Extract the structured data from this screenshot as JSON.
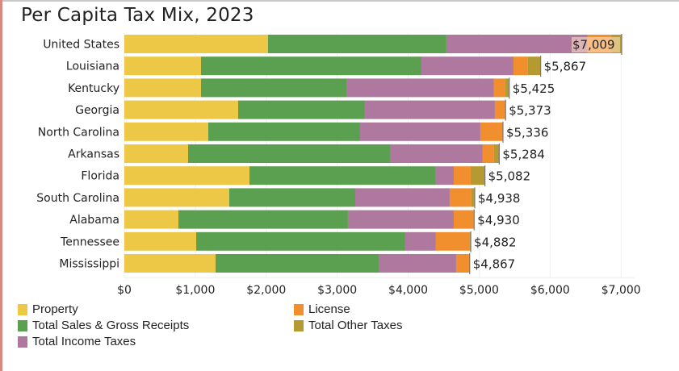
{
  "chart_data": {
    "type": "bar",
    "orientation": "horizontal",
    "stacked": true,
    "title": "Per Capita Tax Mix, 2023",
    "xlabel": "",
    "ylabel": "",
    "xlim": [
      0,
      7000
    ],
    "x_ticks": [
      0,
      1000,
      2000,
      3000,
      4000,
      5000,
      6000,
      7000
    ],
    "x_tick_labels": [
      "$0",
      "$1,000",
      "$2,000",
      "$3,000",
      "$4,000",
      "$5,000",
      "$6,000",
      "$7,000"
    ],
    "grid": true,
    "legend_position": "bottom",
    "categories": [
      "United States",
      "Louisiana",
      "Kentucky",
      "Georgia",
      "North Carolina",
      "Arkansas",
      "Florida",
      "South Carolina",
      "Alabama",
      "Tennessee",
      "Mississippi"
    ],
    "totals": [
      7009,
      5867,
      5425,
      5373,
      5336,
      5284,
      5082,
      4938,
      4930,
      4882,
      4867
    ],
    "total_labels": [
      "$7,009",
      "$5,867",
      "$5,425",
      "$5,373",
      "$5,336",
      "$5,284",
      "$5,082",
      "$4,938",
      "$4,930",
      "$4,882",
      "$4,867"
    ],
    "series": [
      {
        "name": "Property",
        "color": "#ecc846",
        "values": [
          2025,
          1081,
          1081,
          1604,
          1183,
          899,
          1763,
          1479,
          762,
          1013,
          1286
        ]
      },
      {
        "name": "Total Sales & Gross Receipts",
        "color": "#5b9f50",
        "values": [
          2514,
          3106,
          2048,
          1786,
          2139,
          2855,
          2628,
          1775,
          2389,
          2946,
          2298
        ]
      },
      {
        "name": "Total Income Taxes",
        "color": "#af799f",
        "values": [
          1991,
          1297,
          2081,
          1832,
          1695,
          1297,
          251,
          1331,
          1491,
          432,
          1092
        ]
      },
      {
        "name": "License",
        "color": "#f18f2f",
        "values": [
          330,
          204,
          160,
          148,
          319,
          159,
          239,
          307,
          284,
          478,
          182
        ]
      },
      {
        "name": "Total Other Taxes",
        "color": "#b59a31",
        "values": [
          149,
          179,
          55,
          3,
          0,
          74,
          201,
          46,
          4,
          13,
          9
        ]
      }
    ]
  },
  "legend": {
    "items": [
      {
        "label": "Property",
        "color": "#ecc846"
      },
      {
        "label": "License",
        "color": "#f18f2f"
      },
      {
        "label": "Total Sales & Gross Receipts",
        "color": "#5b9f50"
      },
      {
        "label": "Total Other Taxes",
        "color": "#b59a31"
      },
      {
        "label": "Total Income Taxes",
        "color": "#af799f"
      }
    ]
  }
}
